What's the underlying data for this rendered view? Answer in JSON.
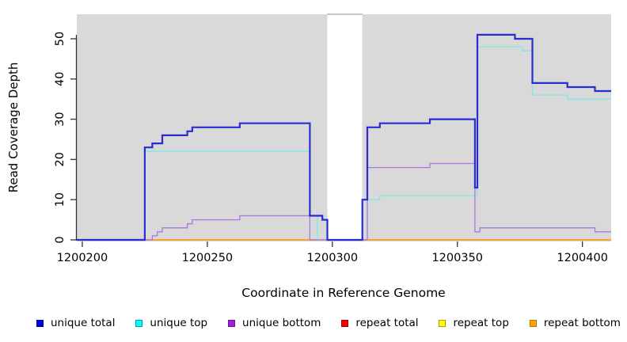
{
  "chart_data": {
    "type": "line",
    "step": true,
    "title": "",
    "xlabel": "Coordinate in Reference Genome",
    "ylabel": "Read Coverage Depth",
    "xlim": [
      1200197.8,
      1200411.5
    ],
    "ylim": [
      0,
      56.1
    ],
    "x_ticks": [
      1200200,
      1200250,
      1200300,
      1200350,
      1200400
    ],
    "y_ticks": [
      0,
      10,
      20,
      30,
      40,
      50
    ],
    "panel_bg": "#d9d9d9",
    "gap_region": {
      "x_start": 1200298,
      "x_end": 1200312,
      "fill": "#ffffff"
    },
    "series": [
      {
        "name": "repeat total",
        "color": "#cc1111",
        "width": 1.3,
        "points": [
          [
            1200197.8,
            0
          ],
          [
            1200411.5,
            0
          ]
        ]
      },
      {
        "name": "repeat top",
        "color": "#f2f20a",
        "width": 1.3,
        "points": [
          [
            1200197.8,
            0
          ],
          [
            1200411.5,
            0
          ]
        ]
      },
      {
        "name": "repeat bottom",
        "color": "#ff9e1b",
        "width": 1.6,
        "points": [
          [
            1200197.8,
            0
          ],
          [
            1200411.5,
            0
          ]
        ]
      },
      {
        "name": "unique top",
        "color": "#84e7e3",
        "width": 1.3,
        "points": [
          [
            1200197.8,
            0
          ],
          [
            1200225,
            22
          ],
          [
            1200291,
            6
          ],
          [
            1200294,
            0
          ],
          [
            1200312,
            10
          ],
          [
            1200319,
            11
          ],
          [
            1200358,
            48
          ],
          [
            1200376,
            47
          ],
          [
            1200380,
            36
          ],
          [
            1200394,
            35
          ],
          [
            1200405,
            35
          ],
          [
            1200411.5,
            35
          ]
        ]
      },
      {
        "name": "unique bottom",
        "color": "#a878de",
        "width": 1.3,
        "points": [
          [
            1200197.8,
            0
          ],
          [
            1200228,
            1
          ],
          [
            1200230,
            2
          ],
          [
            1200232,
            3
          ],
          [
            1200242,
            4
          ],
          [
            1200244,
            5
          ],
          [
            1200263,
            6
          ],
          [
            1200291,
            0
          ],
          [
            1200314,
            18
          ],
          [
            1200339,
            19
          ],
          [
            1200357,
            2
          ],
          [
            1200359,
            3
          ],
          [
            1200405,
            2
          ],
          [
            1200411.5,
            2
          ]
        ]
      },
      {
        "name": "unique total",
        "color": "#2b2bd5",
        "width": 2.2,
        "points": [
          [
            1200197.8,
            0
          ],
          [
            1200225,
            23
          ],
          [
            1200228,
            24
          ],
          [
            1200232,
            26
          ],
          [
            1200242,
            27
          ],
          [
            1200244,
            28
          ],
          [
            1200263,
            29
          ],
          [
            1200291,
            6
          ],
          [
            1200296,
            5
          ],
          [
            1200298,
            0
          ],
          [
            1200312,
            10
          ],
          [
            1200314,
            28
          ],
          [
            1200319,
            29
          ],
          [
            1200339,
            30
          ],
          [
            1200357,
            13
          ],
          [
            1200358,
            51
          ],
          [
            1200373,
            50
          ],
          [
            1200380,
            39
          ],
          [
            1200394,
            38
          ],
          [
            1200405,
            37
          ],
          [
            1200411.5,
            37
          ]
        ]
      }
    ],
    "legend": [
      {
        "label": "unique total",
        "fill": "#0000e0",
        "border": "#0000a0"
      },
      {
        "label": "unique top",
        "fill": "#00ffff",
        "border": "#00a0a0"
      },
      {
        "label": "unique bottom",
        "fill": "#a21fd6",
        "border": "#6a0dad"
      },
      {
        "label": "repeat total",
        "fill": "#ff0000",
        "border": "#aa0000"
      },
      {
        "label": "repeat top",
        "fill": "#ffff00",
        "border": "#a0a000"
      },
      {
        "label": "repeat bottom",
        "fill": "#ffa500",
        "border": "#b97400"
      }
    ],
    "legend_position": "bottom",
    "grid": false
  }
}
